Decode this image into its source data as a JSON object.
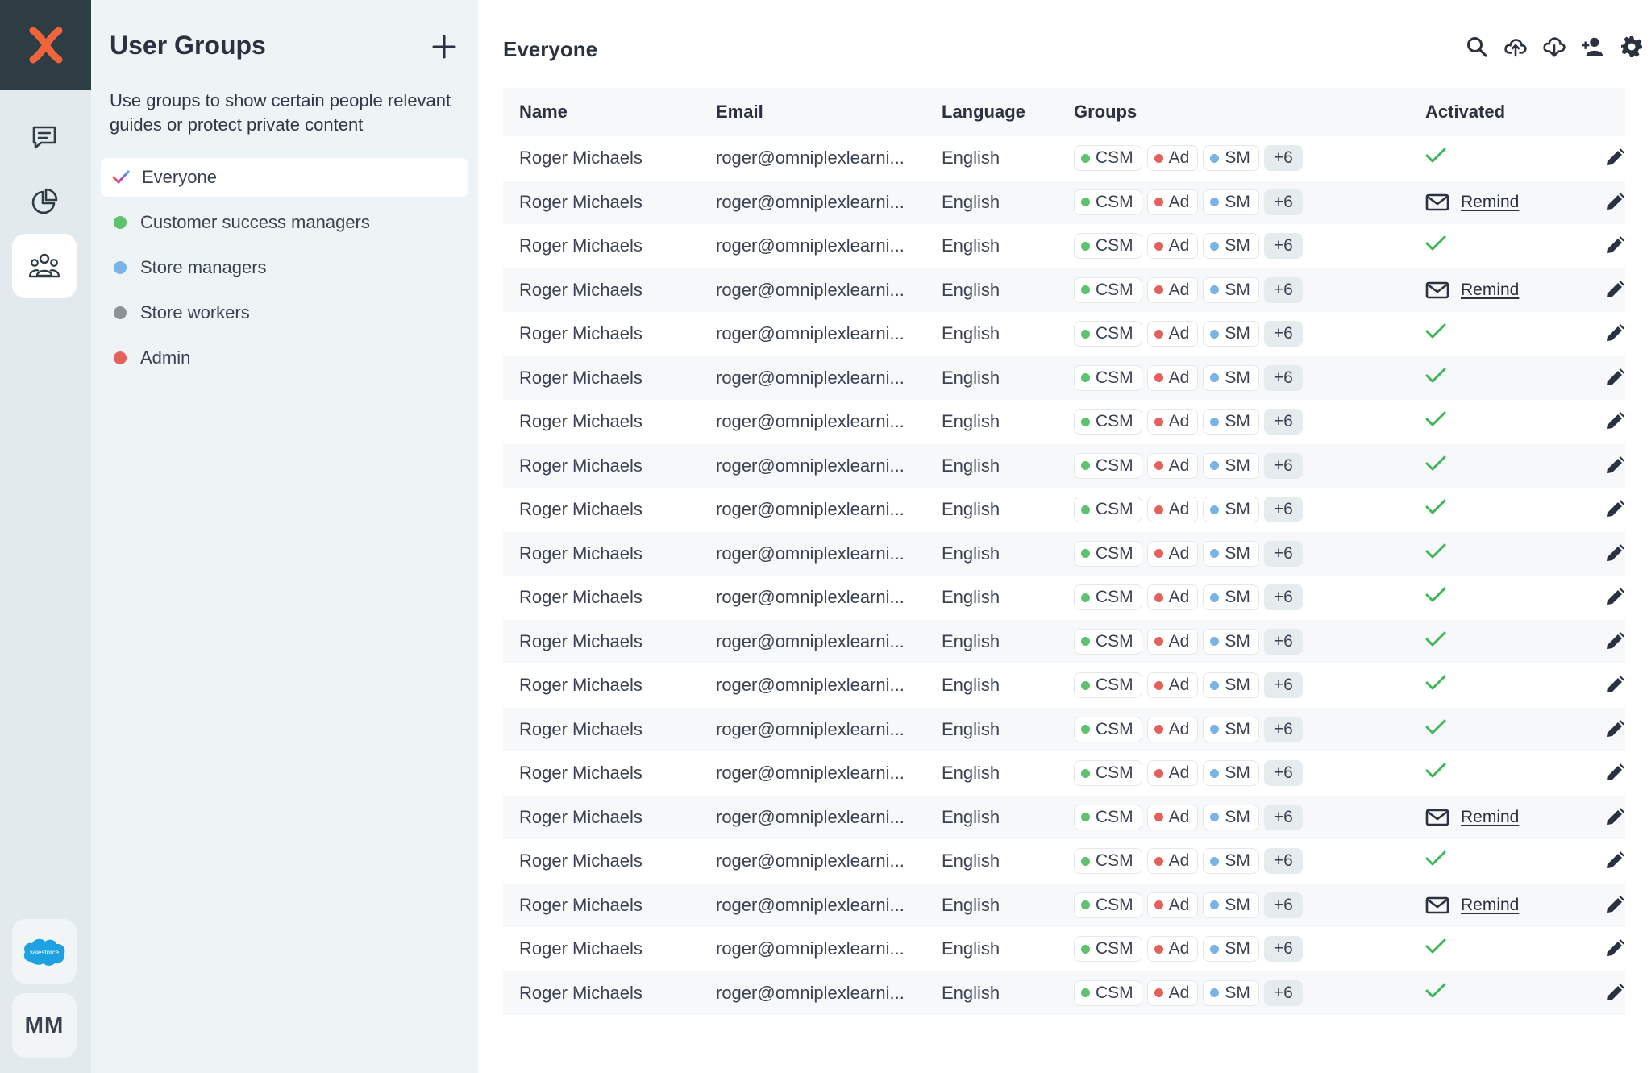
{
  "colors": {
    "brand_orange": "#f0643c",
    "csm_green": "#5dc26d",
    "admin_red": "#e5605b",
    "store_blue": "#7ab3e6",
    "worker_gray": "#8c9297",
    "check_green": "#3fb65a"
  },
  "rail": {
    "items": [
      {
        "icon": "chat-icon"
      },
      {
        "icon": "analytics-pie-icon"
      },
      {
        "icon": "user-groups-icon",
        "active": true
      }
    ],
    "integration_label": "salesforce",
    "user_initials": "MM"
  },
  "groups_panel": {
    "title": "User Groups",
    "description": "Use groups to show certain people relevant guides or protect private content",
    "items": [
      {
        "label": "Everyone",
        "selected": true
      },
      {
        "label": "Customer success managers",
        "color": "#5dc26d"
      },
      {
        "label": "Store managers",
        "color": "#7ab3e6"
      },
      {
        "label": "Store workers",
        "color": "#8c9297"
      },
      {
        "label": "Admin",
        "color": "#e5605b"
      }
    ]
  },
  "main": {
    "title": "Everyone",
    "toolbar": [
      "search-icon",
      "cloud-upload-icon",
      "cloud-download-icon",
      "add-user-icon",
      "gear-icon"
    ],
    "columns": {
      "name": "Name",
      "email": "Email",
      "language": "Language",
      "groups": "Groups",
      "activated": "Activated"
    },
    "remind_label": "Remind",
    "chips": [
      {
        "label": "CSM",
        "color": "#5dc26d"
      },
      {
        "label": "Ad",
        "color": "#e5605b"
      },
      {
        "label": "SM",
        "color": "#7ab3e6"
      }
    ],
    "more_chip": "+6",
    "rows": [
      {
        "name": "Roger Michaels",
        "email": "roger@omniplexlearni...",
        "language": "English",
        "activated": true
      },
      {
        "name": "Roger Michaels",
        "email": "roger@omniplexlearni...",
        "language": "English",
        "activated": false
      },
      {
        "name": "Roger Michaels",
        "email": "roger@omniplexlearni...",
        "language": "English",
        "activated": true
      },
      {
        "name": "Roger Michaels",
        "email": "roger@omniplexlearni...",
        "language": "English",
        "activated": false
      },
      {
        "name": "Roger Michaels",
        "email": "roger@omniplexlearni...",
        "language": "English",
        "activated": true
      },
      {
        "name": "Roger Michaels",
        "email": "roger@omniplexlearni...",
        "language": "English",
        "activated": true
      },
      {
        "name": "Roger Michaels",
        "email": "roger@omniplexlearni...",
        "language": "English",
        "activated": true
      },
      {
        "name": "Roger Michaels",
        "email": "roger@omniplexlearni...",
        "language": "English",
        "activated": true
      },
      {
        "name": "Roger Michaels",
        "email": "roger@omniplexlearni...",
        "language": "English",
        "activated": true
      },
      {
        "name": "Roger Michaels",
        "email": "roger@omniplexlearni...",
        "language": "English",
        "activated": true
      },
      {
        "name": "Roger Michaels",
        "email": "roger@omniplexlearni...",
        "language": "English",
        "activated": true
      },
      {
        "name": "Roger Michaels",
        "email": "roger@omniplexlearni...",
        "language": "English",
        "activated": true
      },
      {
        "name": "Roger Michaels",
        "email": "roger@omniplexlearni...",
        "language": "English",
        "activated": true
      },
      {
        "name": "Roger Michaels",
        "email": "roger@omniplexlearni...",
        "language": "English",
        "activated": true
      },
      {
        "name": "Roger Michaels",
        "email": "roger@omniplexlearni...",
        "language": "English",
        "activated": true
      },
      {
        "name": "Roger Michaels",
        "email": "roger@omniplexlearni...",
        "language": "English",
        "activated": false
      },
      {
        "name": "Roger Michaels",
        "email": "roger@omniplexlearni...",
        "language": "English",
        "activated": true
      },
      {
        "name": "Roger Michaels",
        "email": "roger@omniplexlearni...",
        "language": "English",
        "activated": false
      },
      {
        "name": "Roger Michaels",
        "email": "roger@omniplexlearni...",
        "language": "English",
        "activated": true
      },
      {
        "name": "Roger Michaels",
        "email": "roger@omniplexlearni...",
        "language": "English",
        "activated": true
      }
    ]
  }
}
